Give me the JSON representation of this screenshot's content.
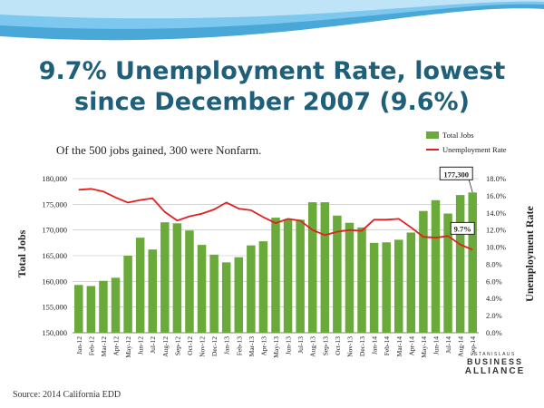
{
  "slide": {
    "title_line1": "9.7% Unemployment Rate, lowest",
    "title_line2": "since December 2007 (9.6%)",
    "source": "Source:  2014 California EDD",
    "logo": {
      "line1": "STANISLAUS",
      "line2": "BUSINESS",
      "line3": "ALLIANCE"
    }
  },
  "chart_data": {
    "type": "bar",
    "subtitle": "Of the 500 jobs gained, 300 were  Nonfarm.",
    "categories": [
      "Jan-12",
      "Feb-12",
      "Mar-12",
      "Apr-12",
      "May-12",
      "Jun-12",
      "Jul-12",
      "Aug-12",
      "Sep-12",
      "Oct-12",
      "Nov-12",
      "Dec-12",
      "Jan-13",
      "Feb-13",
      "Mar-13",
      "Apr-13",
      "May-13",
      "Jun-13",
      "Jul-13",
      "Aug-13",
      "Sep-13",
      "Oct-13",
      "Nov-13",
      "Dec-13",
      "Jan-14",
      "Feb-14",
      "Mar-14",
      "Apr-14",
      "May-14",
      "Jun-14",
      "Jul-14",
      "Aug-14",
      "Sep-14"
    ],
    "series": [
      {
        "name": "Total Jobs",
        "kind": "bar",
        "axis": "left",
        "color": "#6aaa3a",
        "values": [
          159300,
          159100,
          160100,
          160700,
          165000,
          168500,
          166200,
          171500,
          171300,
          169900,
          167100,
          165200,
          163700,
          164700,
          167000,
          167800,
          172400,
          172100,
          172000,
          175400,
          175400,
          172800,
          171400,
          170500,
          167500,
          167600,
          168100,
          169500,
          173700,
          175800,
          173200,
          176800,
          177300
        ]
      },
      {
        "name": "Unemployment Rate",
        "kind": "line",
        "axis": "right",
        "color": "#e02020",
        "values": [
          16.7,
          16.8,
          16.5,
          15.8,
          15.2,
          15.5,
          15.7,
          14.1,
          13.1,
          13.6,
          13.9,
          14.4,
          15.2,
          14.5,
          14.3,
          13.5,
          12.8,
          13.3,
          13.1,
          12.0,
          11.4,
          11.8,
          12.0,
          11.9,
          13.2,
          13.2,
          13.3,
          12.3,
          11.2,
          11.1,
          11.3,
          10.3,
          9.7
        ]
      }
    ],
    "ylabel": "Total Jobs",
    "y2label": "Unemployment Rate",
    "ylim": [
      150000,
      180000
    ],
    "y2lim": [
      0,
      18
    ],
    "yticks": [
      "150,000",
      "155,000",
      "160,000",
      "165,000",
      "170,000",
      "175,000",
      "180,000"
    ],
    "y2ticks": [
      "0.0%",
      "2.0%",
      "4.0%",
      "6.0%",
      "8.0%",
      "10.0%",
      "12.0%",
      "14.0%",
      "16.0%",
      "18.0%"
    ],
    "legend_position": "top-right",
    "annotations": [
      {
        "text": "177,300",
        "target": "Sep-14"
      },
      {
        "text": "9.7%",
        "target": "Sep-14"
      }
    ]
  }
}
